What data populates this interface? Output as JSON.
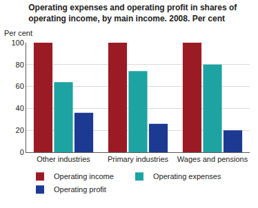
{
  "chart_data": {
    "type": "bar",
    "title": "Operating expenses and operating profit in shares of\noperating income, by main income. 2008. Per cent",
    "y_label": "Per cent",
    "categories": [
      "Other industries",
      "Primary industries",
      "Wages and pensions"
    ],
    "series": [
      {
        "name": "Operating income",
        "color": "#9b1b24",
        "values": [
          100,
          100,
          100
        ]
      },
      {
        "name": "Operating expenses",
        "color": "#1ea3a3",
        "values": [
          64,
          74,
          80
        ]
      },
      {
        "name": "Operating profit",
        "color": "#1c3a92",
        "values": [
          36,
          26,
          20
        ]
      }
    ],
    "ylim": [
      0,
      100
    ],
    "yticks": [
      0,
      20,
      40,
      60,
      80,
      100
    ],
    "grid": true,
    "legend": "bottom"
  }
}
